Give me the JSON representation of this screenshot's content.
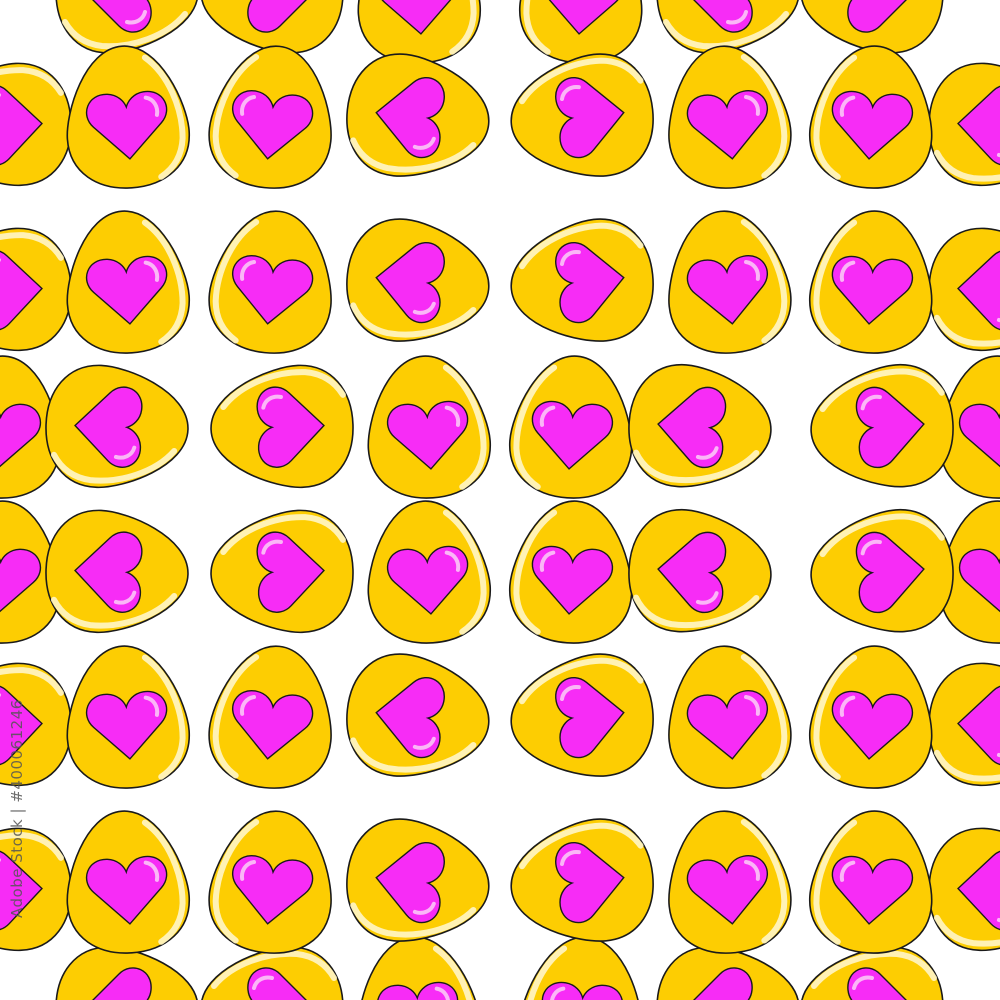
{
  "watermark": {
    "text": "Adobe Stock | #400061246"
  },
  "colors": {
    "background": "#ffffff",
    "egg_fill": "#fdcd02",
    "egg_outline": "#1a1a1a",
    "egg_highlight": "#fff6c8",
    "heart_fill": "#f72cf6",
    "heart_highlight": "#fbb6f7"
  },
  "pattern": {
    "motif": "yellow egg with pink heart",
    "icons": [
      "egg-icon",
      "heart-icon"
    ]
  }
}
